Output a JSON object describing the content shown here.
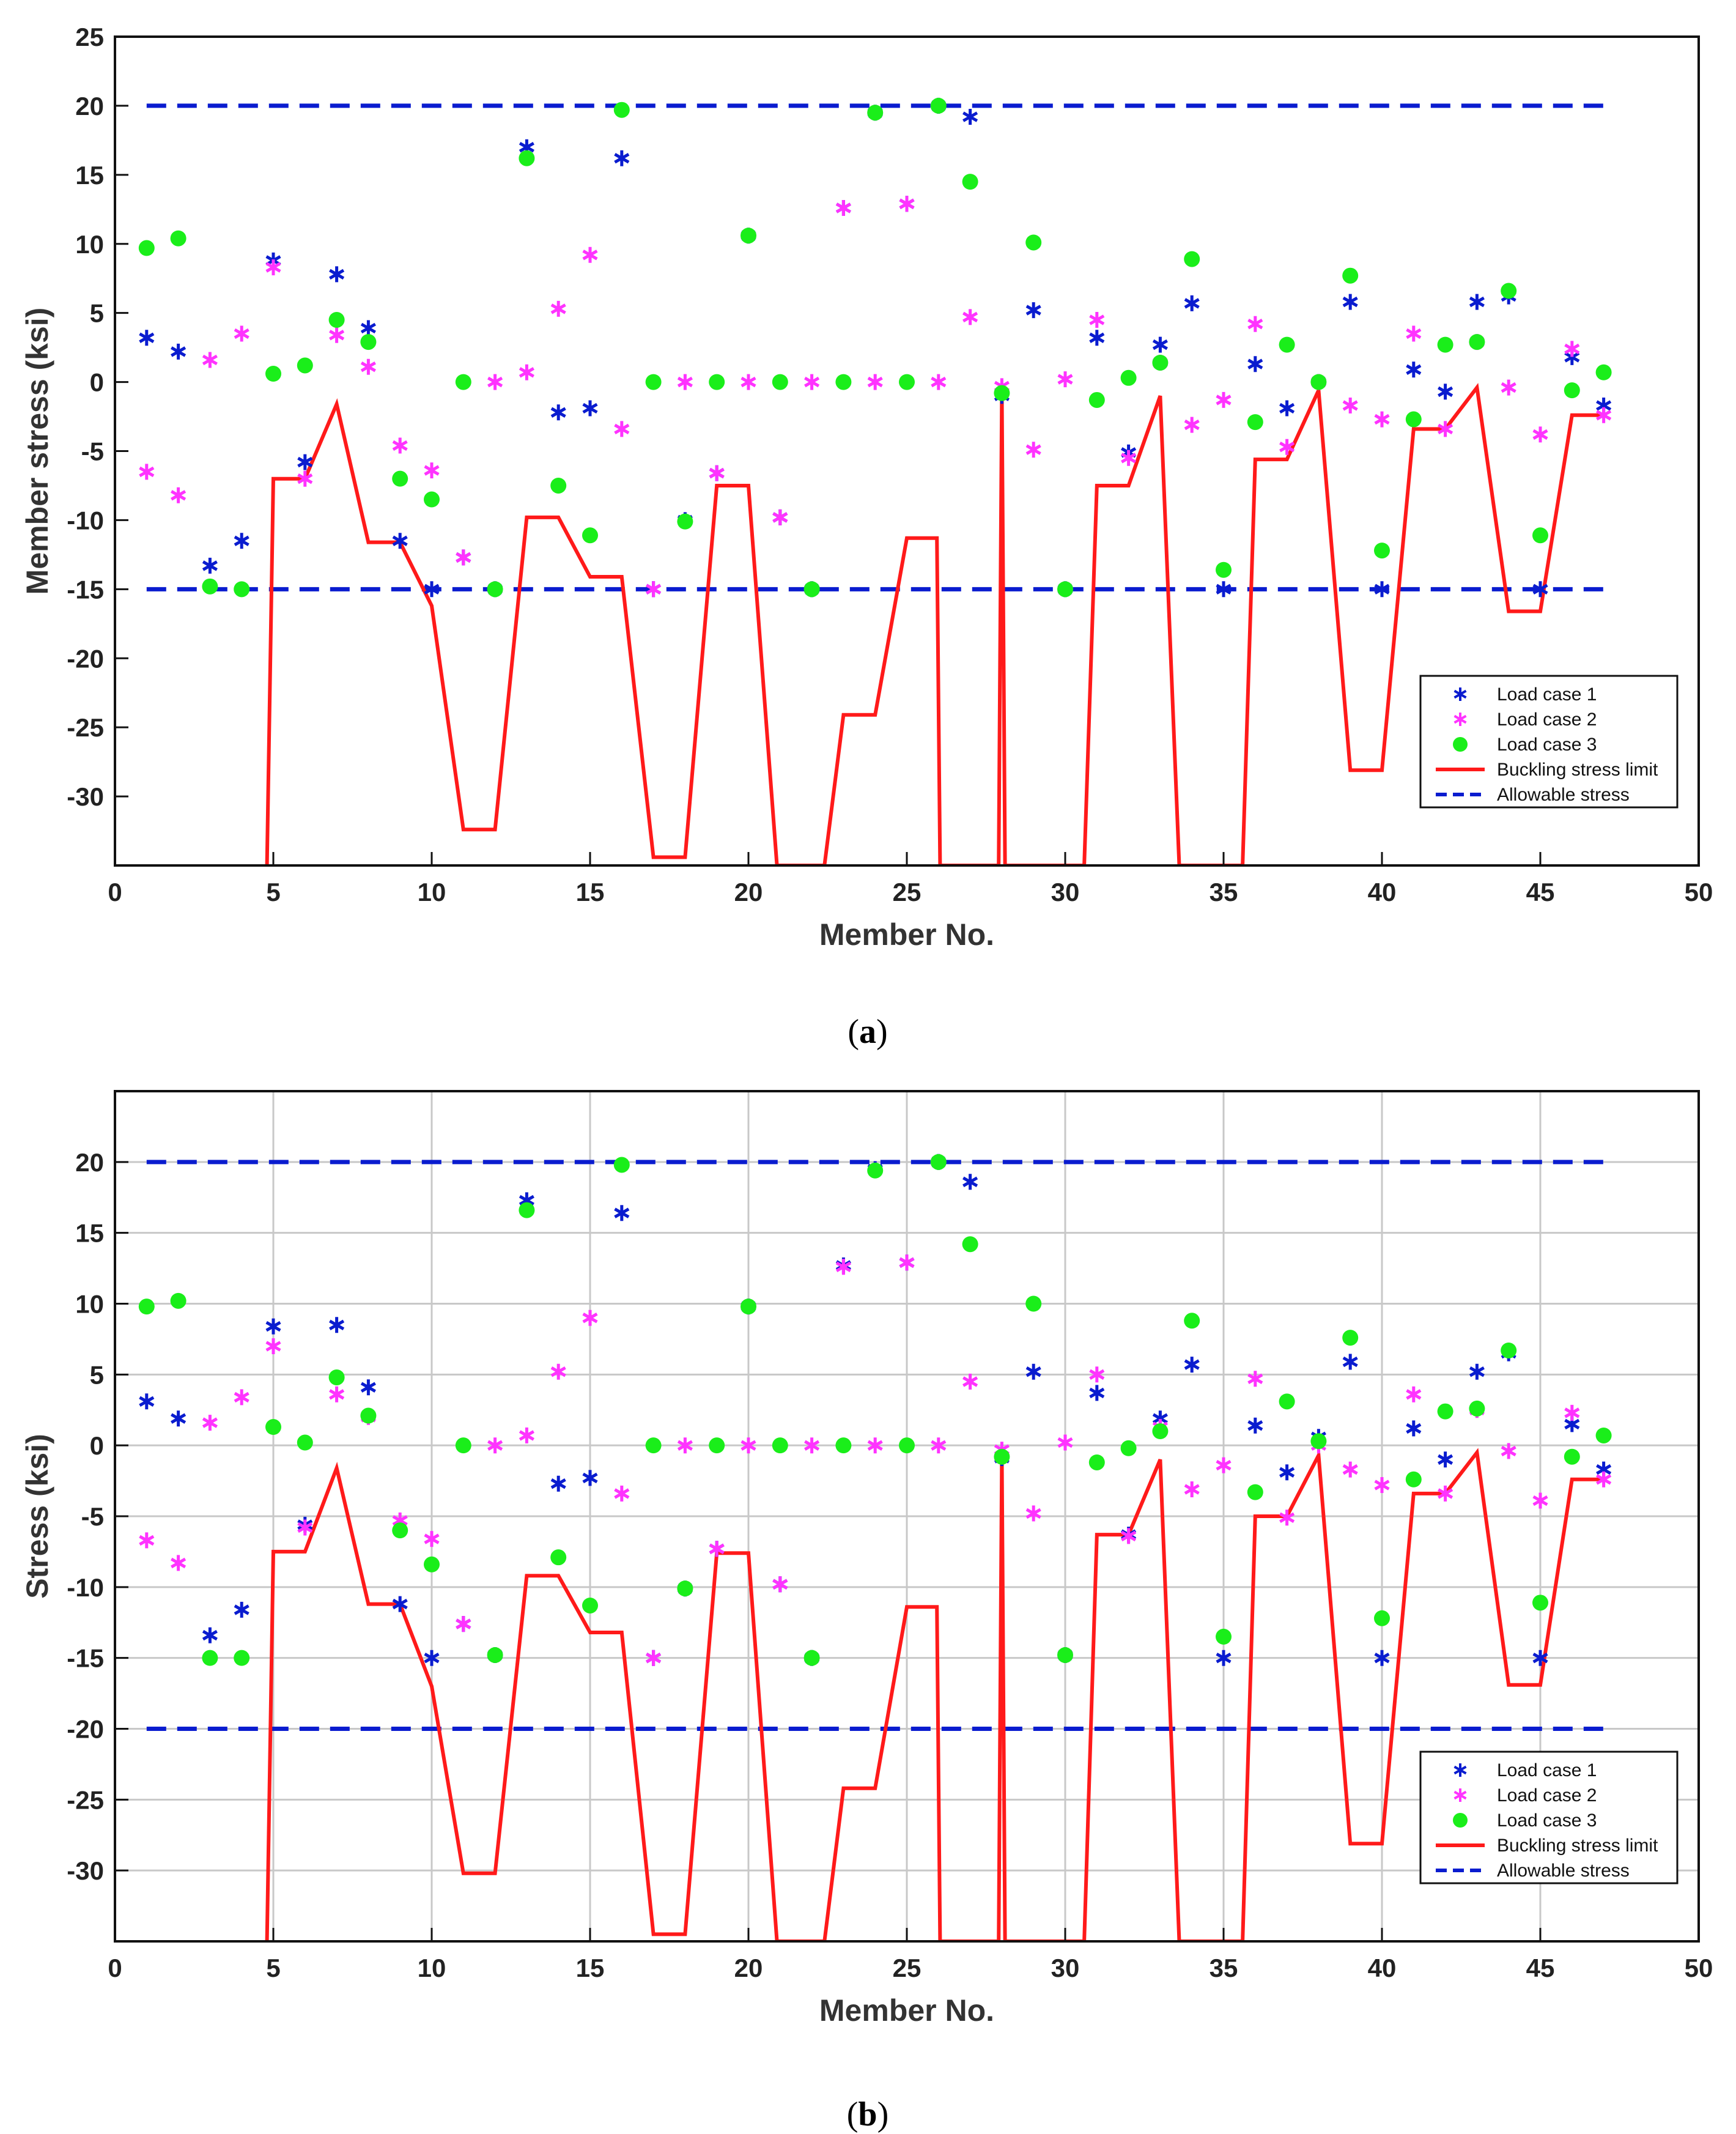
{
  "figure": {
    "panels": [
      "a",
      "b"
    ]
  },
  "colors": {
    "load_case_1": "#0a1ccf",
    "load_case_2": "#ff33ff",
    "load_case_3": "#1aee1a",
    "buckling": "#ff1a1a",
    "allowable": "#0a1ccf",
    "grid": "#c8c8c8"
  },
  "chart_data": [
    {
      "id": "a",
      "type": "scatter",
      "caption_open": "(",
      "caption_letter": "a",
      "caption_close": ")",
      "title": "",
      "xlabel": "Member No.",
      "ylabel": "Member stress (ksi)",
      "xlim": [
        0,
        50
      ],
      "ylim": [
        -35,
        25
      ],
      "xticks": [
        0,
        5,
        10,
        15,
        20,
        25,
        30,
        35,
        40,
        45,
        50
      ],
      "yticks": [
        -30,
        -25,
        -20,
        -15,
        -10,
        -5,
        0,
        5,
        10,
        15,
        20,
        25
      ],
      "grid": false,
      "legend_position": "bottom-right",
      "legend": [
        "Load case 1",
        "Load case 2",
        "Load case 3",
        "Buckling stress limit",
        "Allowable stress"
      ],
      "allowable": [
        20,
        -15
      ],
      "series": [
        {
          "name": "Load case 1",
          "marker": "star",
          "color_key": "load_case_1",
          "x": [
            1,
            2,
            3,
            4,
            5,
            6,
            7,
            8,
            9,
            10,
            11,
            12,
            13,
            14,
            15,
            16,
            17,
            18,
            19,
            20,
            21,
            22,
            23,
            24,
            25,
            26,
            27,
            28,
            29,
            30,
            31,
            32,
            33,
            34,
            35,
            36,
            37,
            38,
            39,
            40,
            41,
            42,
            43,
            44,
            45,
            46,
            47
          ],
          "y": [
            3.2,
            2.2,
            -13.3,
            -11.5,
            8.8,
            -5.8,
            7.8,
            3.9,
            -11.5,
            -15.0,
            -12.7,
            -15.0,
            17.0,
            -2.2,
            -1.9,
            16.2,
            -15.0,
            -10.0,
            -6.6,
            10.6,
            -9.8,
            -15.0,
            12.6,
            19.5,
            12.9,
            20.0,
            19.2,
            -1.0,
            5.2,
            -15.0,
            3.2,
            -5.1,
            2.7,
            5.7,
            -15.0,
            1.3,
            -1.9,
            0.0,
            5.8,
            -15.0,
            0.9,
            -0.7,
            5.8,
            6.2,
            -15.0,
            1.8,
            -1.7
          ]
        },
        {
          "name": "Load case 2",
          "marker": "star",
          "color_key": "load_case_2",
          "x": [
            1,
            2,
            3,
            4,
            5,
            6,
            7,
            8,
            9,
            10,
            11,
            12,
            13,
            14,
            15,
            16,
            17,
            18,
            19,
            20,
            21,
            22,
            23,
            24,
            25,
            26,
            27,
            28,
            29,
            30,
            31,
            32,
            33,
            34,
            35,
            36,
            37,
            38,
            39,
            40,
            41,
            42,
            43,
            44,
            45,
            46,
            47
          ],
          "y": [
            -6.5,
            -8.2,
            1.6,
            3.5,
            8.3,
            -7.0,
            3.4,
            1.1,
            -4.6,
            -6.4,
            -12.7,
            0.0,
            0.7,
            5.3,
            9.2,
            -3.4,
            -15.0,
            0.0,
            -6.6,
            0.0,
            -9.8,
            0.0,
            12.6,
            0.0,
            12.9,
            0.0,
            4.7,
            -0.3,
            -4.9,
            0.2,
            4.5,
            -5.5,
            1.4,
            -3.1,
            -1.3,
            4.2,
            -4.7,
            0.0,
            -1.7,
            -2.7,
            3.5,
            -3.4,
            2.9,
            -0.4,
            -3.8,
            2.4,
            -2.4
          ]
        },
        {
          "name": "Load case 3",
          "marker": "circle",
          "color_key": "load_case_3",
          "x": [
            1,
            2,
            3,
            4,
            5,
            6,
            7,
            8,
            9,
            10,
            11,
            12,
            13,
            14,
            15,
            16,
            17,
            18,
            19,
            20,
            21,
            22,
            23,
            24,
            25,
            26,
            27,
            28,
            29,
            30,
            31,
            32,
            33,
            34,
            35,
            36,
            37,
            38,
            39,
            40,
            41,
            42,
            43,
            44,
            45,
            46,
            47
          ],
          "y": [
            9.7,
            10.4,
            -14.8,
            -15.0,
            0.6,
            1.2,
            4.5,
            2.9,
            -7.0,
            -8.5,
            0.0,
            -15.0,
            16.2,
            -7.5,
            -11.1,
            19.7,
            0.0,
            -10.1,
            0.0,
            10.6,
            0.0,
            -15.0,
            0.0,
            19.5,
            0.0,
            20.0,
            14.5,
            -0.8,
            10.1,
            -15.0,
            -1.3,
            0.3,
            1.4,
            8.9,
            -13.6,
            -2.9,
            2.7,
            0.0,
            7.7,
            -12.2,
            -2.7,
            2.7,
            2.9,
            6.6,
            -11.1,
            -0.6,
            0.7
          ]
        }
      ],
      "buckling_limit": {
        "x": [
          4.8,
          5,
          6,
          7,
          8,
          9,
          10,
          11,
          12,
          13,
          14,
          15,
          16,
          17,
          18,
          19,
          20,
          20.9,
          22.4,
          23,
          24,
          25,
          25.95,
          26.05,
          27.9,
          28.0,
          28.1,
          28.5,
          30.6,
          31,
          32,
          33,
          33.6,
          35.6,
          36,
          37,
          38,
          39,
          40,
          41,
          42,
          43,
          44,
          45,
          46,
          47
        ],
        "y": [
          -35,
          -7.0,
          -7.0,
          -1.6,
          -11.6,
          -11.6,
          -16.2,
          -32.4,
          -32.4,
          -9.8,
          -9.8,
          -14.1,
          -14.1,
          -34.4,
          -34.4,
          -7.5,
          -7.5,
          -35,
          -35,
          -24.1,
          -24.1,
          -11.3,
          -11.3,
          -35,
          -35,
          -0.6,
          -35,
          -35,
          -35,
          -7.5,
          -7.5,
          -1.0,
          -35,
          -35,
          -5.6,
          -5.6,
          -0.6,
          -28.1,
          -28.1,
          -3.4,
          -3.4,
          -0.4,
          -16.6,
          -16.6,
          -2.4,
          -2.4
        ]
      }
    },
    {
      "id": "b",
      "type": "scatter",
      "caption_open": "(",
      "caption_letter": "b",
      "caption_close": ")",
      "title": "",
      "xlabel": "Member No.",
      "ylabel": "Stress (ksi)",
      "xlim": [
        0,
        50
      ],
      "ylim": [
        -35,
        25
      ],
      "xticks": [
        0,
        5,
        10,
        15,
        20,
        25,
        30,
        35,
        40,
        45,
        50
      ],
      "yticks": [
        -30,
        -25,
        -20,
        -15,
        -10,
        -5,
        0,
        5,
        10,
        15,
        20
      ],
      "grid": true,
      "legend_position": "bottom-right",
      "legend": [
        "Load case 1",
        "Load case 2",
        "Load case 3",
        "Buckling stress limit",
        "Allowable stress"
      ],
      "allowable": [
        20,
        -20
      ],
      "series": [
        {
          "name": "Load case 1",
          "marker": "star",
          "color_key": "load_case_1",
          "x": [
            1,
            2,
            3,
            4,
            5,
            6,
            7,
            8,
            9,
            10,
            11,
            12,
            13,
            14,
            15,
            16,
            17,
            18,
            19,
            20,
            21,
            22,
            23,
            24,
            25,
            26,
            27,
            28,
            29,
            30,
            31,
            32,
            33,
            34,
            35,
            36,
            37,
            38,
            39,
            40,
            41,
            42,
            43,
            44,
            45,
            46,
            47
          ],
          "y": [
            3.1,
            1.9,
            -13.4,
            -11.6,
            8.4,
            -5.6,
            8.5,
            4.1,
            -11.2,
            -15.0,
            -12.6,
            -14.8,
            17.3,
            -2.7,
            -2.3,
            16.4,
            -15.0,
            -10.1,
            -7.3,
            9.8,
            -9.8,
            -15.0,
            12.7,
            19.5,
            12.9,
            20.0,
            18.6,
            -0.9,
            5.2,
            -14.8,
            3.7,
            -6.3,
            1.9,
            5.7,
            -15.0,
            1.4,
            -1.9,
            0.6,
            5.9,
            -15.0,
            1.2,
            -1.0,
            5.2,
            6.5,
            -15.0,
            1.5,
            -1.7
          ]
        },
        {
          "name": "Load case 2",
          "marker": "star",
          "color_key": "load_case_2",
          "x": [
            1,
            2,
            3,
            4,
            5,
            6,
            7,
            8,
            9,
            10,
            11,
            12,
            13,
            14,
            15,
            16,
            17,
            18,
            19,
            20,
            21,
            22,
            23,
            24,
            25,
            26,
            27,
            28,
            29,
            30,
            31,
            32,
            33,
            34,
            35,
            36,
            37,
            38,
            39,
            40,
            41,
            42,
            43,
            44,
            45,
            46,
            47
          ],
          "y": [
            -6.7,
            -8.3,
            1.6,
            3.4,
            7.0,
            -5.8,
            3.6,
            2.0,
            -5.3,
            -6.6,
            -12.6,
            0.0,
            0.7,
            5.2,
            9.0,
            -3.4,
            -15.0,
            0.0,
            -7.3,
            0.0,
            -9.8,
            0.0,
            12.6,
            0.0,
            12.9,
            0.0,
            4.5,
            -0.3,
            -4.8,
            0.2,
            5.0,
            -6.4,
            1.3,
            -3.1,
            -1.4,
            4.7,
            -5.1,
            0.0,
            -1.7,
            -2.8,
            3.6,
            -3.4,
            2.5,
            -0.4,
            -3.9,
            2.3,
            -2.4
          ]
        },
        {
          "name": "Load case 3",
          "marker": "circle",
          "color_key": "load_case_3",
          "x": [
            1,
            2,
            3,
            4,
            5,
            6,
            7,
            8,
            9,
            10,
            11,
            12,
            13,
            14,
            15,
            16,
            17,
            18,
            19,
            20,
            21,
            22,
            23,
            24,
            25,
            26,
            27,
            28,
            29,
            30,
            31,
            32,
            33,
            34,
            35,
            36,
            37,
            38,
            39,
            40,
            41,
            42,
            43,
            44,
            45,
            46,
            47
          ],
          "y": [
            9.8,
            10.2,
            -15.0,
            -15.0,
            1.3,
            0.2,
            4.8,
            2.1,
            -6.0,
            -8.4,
            0.0,
            -14.8,
            16.6,
            -7.9,
            -11.3,
            19.8,
            0.0,
            -10.1,
            0.0,
            9.8,
            0.0,
            -15.0,
            0.0,
            19.4,
            0.0,
            20.0,
            14.2,
            -0.8,
            10.0,
            -14.8,
            -1.2,
            -0.2,
            1.0,
            8.8,
            -13.5,
            -3.3,
            3.1,
            0.3,
            7.6,
            -12.2,
            -2.4,
            2.4,
            2.6,
            6.7,
            -11.1,
            -0.8,
            0.7
          ]
        }
      ],
      "buckling_limit": {
        "x": [
          4.8,
          5,
          6,
          7,
          8,
          9,
          10,
          11,
          12,
          13,
          14,
          15,
          16,
          17,
          18,
          19,
          20,
          20.9,
          22.4,
          23,
          24,
          25,
          25.95,
          26.05,
          27.9,
          28.0,
          28.1,
          28.5,
          30.6,
          31,
          32,
          33,
          33.6,
          35.6,
          36,
          37,
          38,
          39,
          40,
          41,
          42,
          43,
          44,
          45,
          46,
          47
        ],
        "y": [
          -35,
          -7.5,
          -7.5,
          -1.6,
          -11.2,
          -11.2,
          -17.0,
          -30.2,
          -30.2,
          -9.2,
          -9.2,
          -13.2,
          -13.2,
          -34.5,
          -34.5,
          -7.6,
          -7.6,
          -35,
          -35,
          -24.2,
          -24.2,
          -11.4,
          -11.4,
          -35,
          -35,
          -0.6,
          -35,
          -35,
          -35,
          -6.3,
          -6.3,
          -1.0,
          -35,
          -35,
          -5.0,
          -5.0,
          -0.7,
          -28.1,
          -28.1,
          -3.4,
          -3.4,
          -0.5,
          -16.9,
          -16.9,
          -2.4,
          -2.4
        ]
      }
    }
  ]
}
